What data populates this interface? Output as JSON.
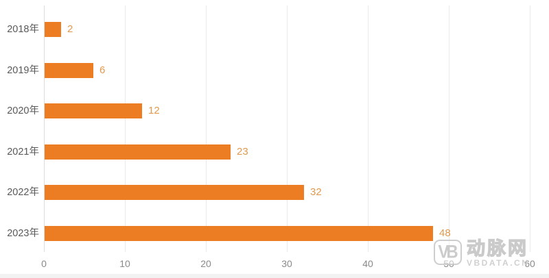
{
  "chart_data": {
    "type": "bar",
    "orientation": "horizontal",
    "title": "",
    "xlabel": "",
    "ylabel": "",
    "categories": [
      "2018年",
      "2019年",
      "2020年",
      "2021年",
      "2022年",
      "2023年"
    ],
    "values": [
      2,
      6,
      12,
      23,
      32,
      48
    ],
    "value_labels": [
      "2",
      "6",
      "12",
      "23",
      "32",
      "48"
    ],
    "xticks": [
      0,
      10,
      20,
      30,
      40,
      50,
      60
    ],
    "xlim": [
      0,
      60
    ],
    "grid": "vertical-only",
    "legend": "none",
    "data_labels_position": "outside-end"
  },
  "colors": {
    "bar_fill": "#EC7D23",
    "value_label": "#E09A4E",
    "category_label": "#595959",
    "tick_label": "#8A8A8A",
    "gridline": "#EAEAEA",
    "zero_line": "#DCDCDC",
    "background": "#FFFFFF",
    "watermark_gray": "#C9C9C9"
  },
  "watermark": {
    "logo_text": "VB",
    "brand_cn": "动脉网",
    "brand_en": "VBDATA.CN"
  }
}
